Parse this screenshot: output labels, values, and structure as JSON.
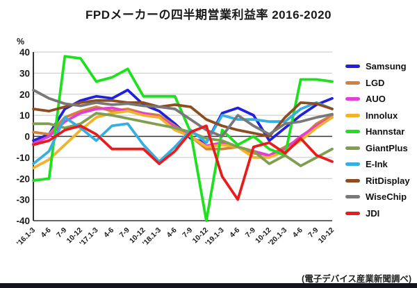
{
  "page": {
    "title": "FPDメーカーの四半期営業利益率 2016-2020",
    "source_note": "(電子デバイス産業新聞調べ)"
  },
  "colors": {
    "axis": "#333333",
    "grid": "#c4c4c4",
    "zero_line": "#333333",
    "text": "#1a1a1a",
    "footer_bar": "#14141e"
  },
  "chart_data": {
    "type": "line",
    "title": "FPDメーカーの四半期営業利益率 2016-2020",
    "ylabel": "%",
    "ylim": [
      -40,
      40
    ],
    "ytick_step": 10,
    "yticks": [
      40,
      30,
      20,
      10,
      0,
      -10,
      -20,
      -30,
      -40
    ],
    "grid": true,
    "legend_position": "right",
    "categories": [
      "'16.1-3",
      "4-6",
      "7-9",
      "10-12",
      "'17.1-3",
      "4-6",
      "7-9",
      "10-12",
      "'18.1-3",
      "4-6",
      "7-9",
      "10-12",
      "'19.1-3",
      "4-6",
      "7-9",
      "10-12",
      "'20.1-3",
      "4-6",
      "7-9",
      "10-12"
    ],
    "series": [
      {
        "name": "Samsung",
        "color": "#2020dd",
        "values": [
          -2,
          1,
          13,
          17,
          19,
          18,
          22,
          15,
          12,
          6,
          -1,
          -3,
          11,
          13.5,
          10,
          -2,
          4,
          10,
          15,
          18
        ]
      },
      {
        "name": "LGD",
        "color": "#d4813a",
        "values": [
          2,
          1,
          9,
          12,
          14,
          12,
          13,
          11,
          10,
          5,
          0,
          -6,
          -6,
          -5,
          -8,
          -9,
          -5,
          -1,
          6,
          10
        ]
      },
      {
        "name": "AUO",
        "color": "#e33fd6",
        "values": [
          -3.5,
          0,
          7,
          11,
          13,
          13.5,
          12,
          11,
          9,
          4.5,
          0,
          -4.5,
          -3,
          -5,
          -7,
          -9,
          -6,
          0,
          5,
          9
        ]
      },
      {
        "name": "Innolux",
        "color": "#f2b32a",
        "values": [
          -15,
          -11,
          -4,
          3,
          9,
          11,
          12,
          10,
          9,
          3,
          0,
          -5,
          -4,
          -5,
          -10,
          -10,
          -7,
          -2,
          4,
          9
        ]
      },
      {
        "name": "Hannstar",
        "color": "#1ee11e",
        "values": [
          -21,
          -20,
          38,
          37,
          26,
          28,
          32,
          19,
          19,
          19,
          2,
          -40,
          3,
          -4,
          0,
          -6,
          -9,
          27,
          27,
          26
        ]
      },
      {
        "name": "GiantPlus",
        "color": "#7f9f4f",
        "values": [
          6,
          6,
          4,
          6,
          11,
          10,
          8.5,
          7,
          5.5,
          4,
          2,
          -1,
          -2,
          -5,
          -7,
          -13,
          -9,
          -14,
          -10,
          -6
        ]
      },
      {
        "name": "E-Ink",
        "color": "#35aee0",
        "values": [
          -13,
          -7,
          9,
          4,
          -2,
          5,
          6,
          -4,
          -12,
          -5,
          3,
          -3,
          10,
          8,
          8,
          7,
          7,
          13,
          16,
          13
        ]
      },
      {
        "name": "RitDisplay",
        "color": "#8e4d20",
        "values": [
          13,
          12,
          14,
          16,
          17,
          17,
          16,
          16,
          14,
          15,
          14,
          8,
          5,
          3,
          1.5,
          0,
          9,
          16,
          15.5,
          13
        ]
      },
      {
        "name": "WiseChip",
        "color": "#787878",
        "values": [
          22,
          18,
          15.5,
          14.5,
          16,
          15,
          15.5,
          14.5,
          14,
          13,
          8,
          3,
          0,
          10,
          5,
          1,
          6,
          7,
          9,
          10.5
        ]
      },
      {
        "name": "JDI",
        "color": "#e81c1c",
        "values": [
          -4,
          -2,
          3,
          5,
          1,
          -6,
          -6,
          -6,
          -13,
          -7,
          2,
          5,
          -19,
          -30,
          -5,
          -3,
          -8,
          -1,
          -9,
          -12
        ]
      }
    ]
  }
}
